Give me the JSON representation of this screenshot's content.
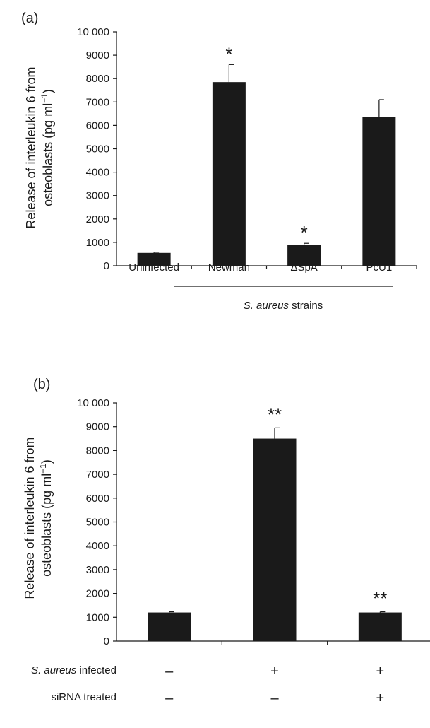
{
  "chart_data": [
    {
      "type": "bar",
      "panel_label": "(a)",
      "ylabel_line1": "Release of interleukin 6 from",
      "ylabel_line2_prefix": "osteoblasts (pg ml",
      "ylabel_line2_sup": "−1",
      "ylabel_line2_suffix": ")",
      "ylim": [
        0,
        10000
      ],
      "yticks": [
        0,
        1000,
        2000,
        3000,
        4000,
        5000,
        6000,
        7000,
        8000,
        9000,
        10000
      ],
      "ytick_labels": [
        "0",
        "1000",
        "2000",
        "3000",
        "4000",
        "5000",
        "6000",
        "7000",
        "8000",
        "9000",
        "10 000"
      ],
      "categories": [
        "Uninfected",
        "Newman",
        "ΔSpA",
        "PcU1"
      ],
      "values": [
        550,
        7850,
        900,
        6350
      ],
      "errors": [
        30,
        750,
        60,
        750
      ],
      "significance": [
        "",
        "*",
        "*",
        ""
      ],
      "group_label_italic": "S. aureus",
      "group_label_rest": " strains",
      "bar_color": "#1a1a1a"
    },
    {
      "type": "bar",
      "panel_label": "(b)",
      "ylabel_line1": "Release of interleukin 6 from",
      "ylabel_line2_prefix": "osteoblasts (pg ml",
      "ylabel_line2_sup": "−1",
      "ylabel_line2_suffix": ")",
      "ylim": [
        0,
        10000
      ],
      "yticks": [
        0,
        1000,
        2000,
        3000,
        4000,
        5000,
        6000,
        7000,
        8000,
        9000,
        10000
      ],
      "ytick_labels": [
        "0",
        "1000",
        "2000",
        "3000",
        "4000",
        "5000",
        "6000",
        "7000",
        "8000",
        "9000",
        "10 000"
      ],
      "values": [
        1200,
        8500,
        1200
      ],
      "errors": [
        30,
        450,
        30
      ],
      "significance": [
        "",
        "**",
        "**"
      ],
      "row1_label_italic": "S. aureus",
      "row1_label_rest": " infected",
      "row1_signs": [
        "–",
        "+",
        "+"
      ],
      "row2_label": "siRNA treated",
      "row2_signs": [
        "–",
        "–",
        "+"
      ],
      "bar_color": "#1a1a1a"
    }
  ]
}
